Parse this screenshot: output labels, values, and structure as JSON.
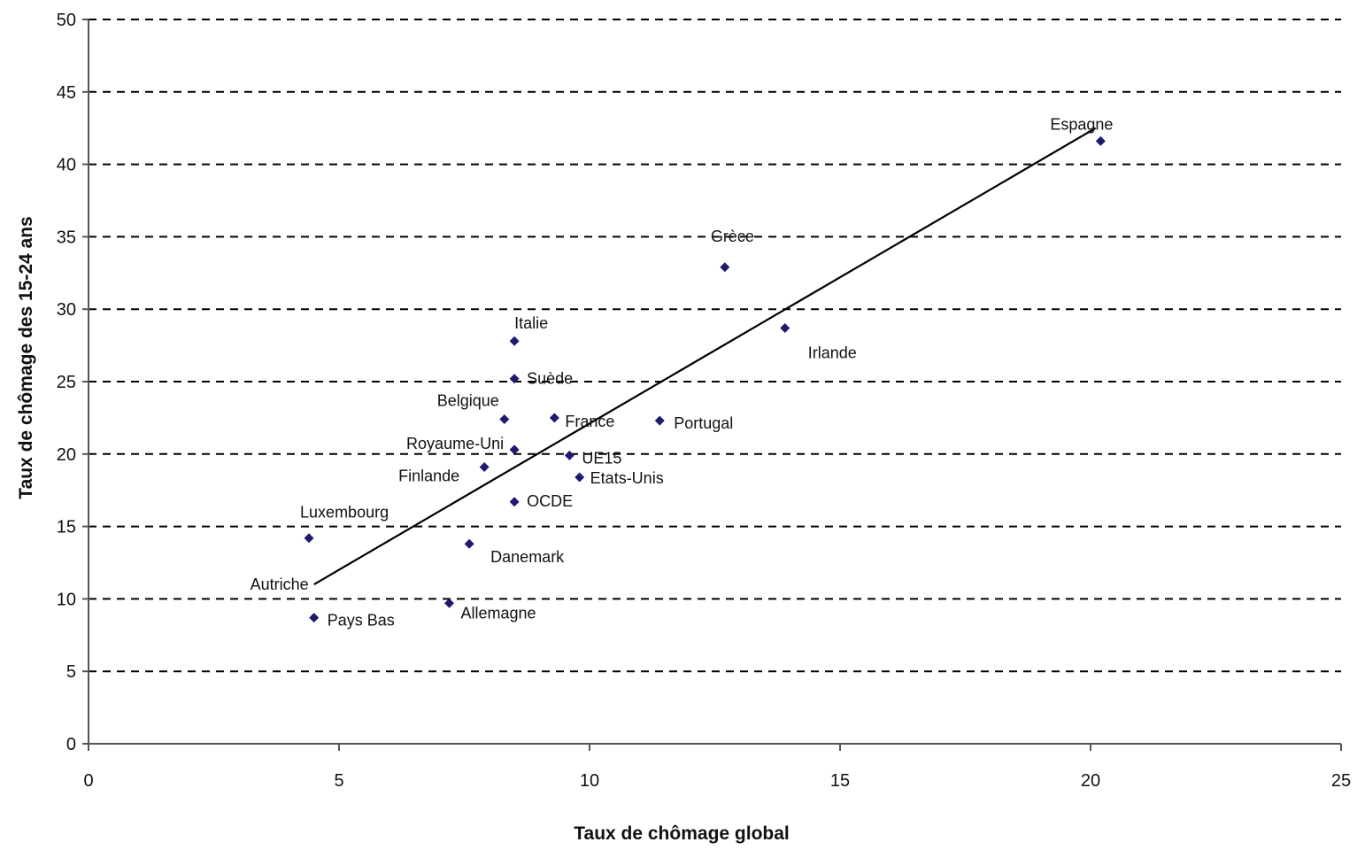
{
  "chart_data": {
    "type": "scatter",
    "title": "",
    "xlabel": "Taux de chômage global",
    "ylabel": "Taux de chômage des 15-24 ans",
    "xlim": [
      0,
      25
    ],
    "ylim": [
      0,
      50
    ],
    "xticks": [
      0,
      5,
      10,
      15,
      20,
      25
    ],
    "yticks": [
      0,
      5,
      10,
      15,
      20,
      25,
      30,
      35,
      40,
      45,
      50
    ],
    "grid": "horizontal-dashed",
    "point_color": "#1f1a6e",
    "points": [
      {
        "label": "Espagne",
        "x": 20.2,
        "y": 41.6
      },
      {
        "label": "Grèce",
        "x": 12.7,
        "y": 32.9
      },
      {
        "label": "Irlande",
        "x": 13.9,
        "y": 28.7
      },
      {
        "label": "Italie",
        "x": 8.5,
        "y": 27.8
      },
      {
        "label": "Suède",
        "x": 8.5,
        "y": 25.2
      },
      {
        "label": "Belgique",
        "x": 8.3,
        "y": 22.4
      },
      {
        "label": "France",
        "x": 9.3,
        "y": 22.5
      },
      {
        "label": "Portugal",
        "x": 11.4,
        "y": 22.3
      },
      {
        "label": "Royaume-Uni",
        "x": 8.5,
        "y": 20.3
      },
      {
        "label": "UE15",
        "x": 9.6,
        "y": 19.9
      },
      {
        "label": "Finlande",
        "x": 7.9,
        "y": 19.1
      },
      {
        "label": "Etats-Unis",
        "x": 9.8,
        "y": 18.4
      },
      {
        "label": "OCDE",
        "x": 8.5,
        "y": 16.7
      },
      {
        "label": "Luxembourg",
        "x": 4.4,
        "y": 14.2
      },
      {
        "label": "Danemark",
        "x": 7.6,
        "y": 13.8
      },
      {
        "label": "Allemagne",
        "x": 7.2,
        "y": 9.7
      },
      {
        "label": "Pays Bas",
        "x": 4.5,
        "y": 8.7
      }
    ],
    "annotations": [
      {
        "label": "Autriche"
      }
    ],
    "trendline": {
      "x": [
        4.5,
        20.1
      ],
      "y": [
        11.0,
        42.5
      ]
    }
  }
}
